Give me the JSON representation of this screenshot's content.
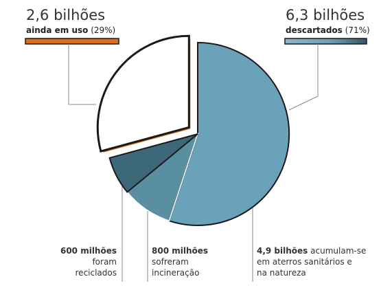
{
  "left_header": {
    "value": "2,6 bilhões",
    "label_bold": "ainda em uso",
    "label_pct": "(29%)"
  },
  "right_header": {
    "value": "6,3 bilhões",
    "label_bold": "descartados",
    "label_pct": "(71%)"
  },
  "annotations": {
    "recycled": {
      "bold": "600 milhões",
      "line2": "foram",
      "line3": "reciclados"
    },
    "incinerated": {
      "bold": "800 milhões",
      "line2": "sofreram",
      "line3": "incineração"
    },
    "accumulated": {
      "bold": "4,9 bilhões",
      "rest1": "acumulam-se",
      "line2": "em aterros sanitários e",
      "line3": "na natureza"
    }
  },
  "colors": {
    "in_use": "#de6e1b",
    "discarded_bar_light": "#8fb5c8",
    "discarded_bar_dark": "#3a5560",
    "landfill": "#6aa2b9",
    "incinerated": "#5a8ea1",
    "recycled": "#3d6879",
    "outline": "#1a1a1a"
  },
  "chart_data": {
    "type": "pie",
    "unit": "bilhões",
    "slices": [
      {
        "label": "ainda em uso",
        "value": 2.6
      },
      {
        "label": "reciclados",
        "value": 0.6
      },
      {
        "label": "incineração",
        "value": 0.8
      },
      {
        "label": "aterros sanitários e natureza",
        "value": 4.9
      }
    ]
  }
}
